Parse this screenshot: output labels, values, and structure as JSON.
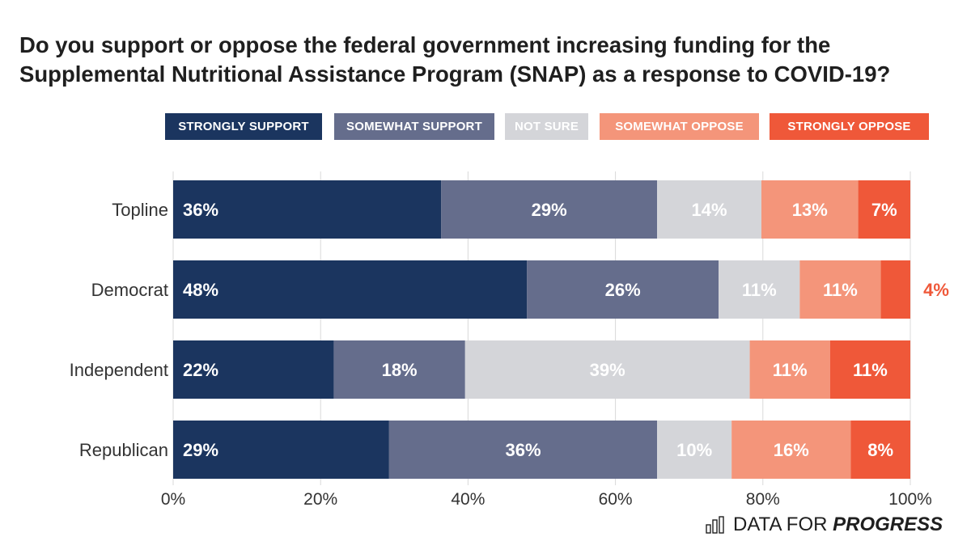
{
  "chart_data": {
    "type": "bar",
    "orientation": "horizontal",
    "stacked": true,
    "title": "Do you support or oppose the federal government increasing funding for the Supplemental Nutritional Assistance Program (SNAP) as a response to COVID-19?",
    "title_lines": [
      "Do you support or oppose the federal government increasing funding for the",
      "Supplemental Nutritional Assistance Program (SNAP) as a response to COVID-19?"
    ],
    "categories": [
      "Topline",
      "Democrat",
      "Independent",
      "Republican"
    ],
    "series": [
      {
        "name": "STRONGLY SUPPORT",
        "color": "#1b355f",
        "values": [
          36,
          48,
          22,
          29
        ],
        "labels": [
          "36%",
          "48%",
          "22%",
          "29%"
        ]
      },
      {
        "name": "SOMEWHAT SUPPORT",
        "color": "#656d8c",
        "values": [
          29,
          26,
          18,
          36
        ],
        "labels": [
          "29%",
          "26%",
          "18%",
          "36%"
        ]
      },
      {
        "name": "NOT SURE",
        "color": "#d4d5d9",
        "values": [
          14,
          11,
          39,
          10
        ],
        "labels": [
          "14%",
          "11%",
          "39%",
          "10%"
        ]
      },
      {
        "name": "SOMEWHAT OPPOSE",
        "color": "#f4957a",
        "values": [
          13,
          11,
          11,
          16
        ],
        "labels": [
          "13%",
          "11%",
          "11%",
          "16%"
        ]
      },
      {
        "name": "STRONGLY OPPOSE",
        "color": "#ef5839",
        "values": [
          7,
          4,
          11,
          8
        ],
        "labels": [
          "7%",
          "4%",
          "11%",
          "8%"
        ]
      }
    ],
    "xlim": [
      0,
      100
    ],
    "x_ticks": [
      0,
      20,
      40,
      60,
      80,
      100
    ],
    "x_tick_labels": [
      "0%",
      "20%",
      "40%",
      "60%",
      "80%",
      "100%"
    ],
    "grid": true,
    "legend_position": "top-right"
  },
  "branding": {
    "prefix": "DATA FOR ",
    "emphasis": "PROGRESS",
    "icon": "bar-chart-icon"
  }
}
